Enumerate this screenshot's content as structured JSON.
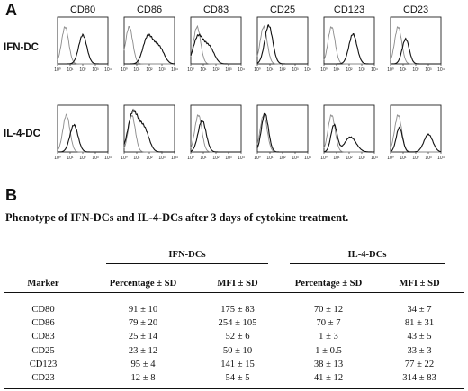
{
  "panel_a": {
    "letter": "A",
    "markers": [
      "CD80",
      "CD86",
      "CD83",
      "CD25",
      "CD123",
      "CD23"
    ],
    "rows": [
      {
        "label": "IFN-DC",
        "plots": [
          {
            "control_peak": 0.6,
            "stain_peak": 2.0,
            "stain_height": 0.64,
            "stain_shape": "single"
          },
          {
            "control_peak": 0.4,
            "stain_peak": 2.3,
            "stain_height": 0.45,
            "stain_shape": "broad"
          },
          {
            "control_peak": 0.5,
            "stain_peak": 1.0,
            "stain_height": 0.45,
            "stain_shape": "broad"
          },
          {
            "control_peak": 0.5,
            "stain_peak": 0.9,
            "stain_height": 0.85,
            "stain_shape": "single"
          },
          {
            "control_peak": 0.6,
            "stain_peak": 2.3,
            "stain_height": 0.66,
            "stain_shape": "single"
          },
          {
            "control_peak": 0.6,
            "stain_peak": 1.2,
            "stain_height": 0.55,
            "stain_shape": "overlap"
          }
        ]
      },
      {
        "label": "IL-4-DC",
        "plots": [
          {
            "control_peak": 0.7,
            "stain_peak": 1.3,
            "stain_height": 0.6,
            "stain_shape": "single"
          },
          {
            "control_peak": 0.6,
            "stain_peak": 1.1,
            "stain_height": 0.64,
            "stain_shape": "broad"
          },
          {
            "control_peak": 0.6,
            "stain_peak": 0.9,
            "stain_height": 0.7,
            "stain_shape": "single"
          },
          {
            "control_peak": 0.5,
            "stain_peak": 0.6,
            "stain_height": 0.85,
            "stain_shape": "overlap"
          },
          {
            "control_peak": 0.6,
            "stain_peak": 1.2,
            "stain_height": 0.6,
            "stain_shape": "bimodal"
          },
          {
            "control_peak": 0.6,
            "stain_peak": 0.9,
            "stain_height": 0.6,
            "stain_shape": "bimodal-high"
          }
        ]
      }
    ],
    "x_ticks": [
      "10⁰",
      "10¹",
      "10²",
      "10³",
      "10⁴"
    ]
  },
  "panel_b": {
    "letter": "B",
    "caption": "Phenotype of IFN-DCs and IL-4-DCs after 3 days of cytokine treatment.",
    "group_headers": [
      "IFN-DCs",
      "IL-4-DCs"
    ],
    "column_headers": [
      "Marker",
      "Percentage ± SD",
      "MFI ± SD",
      "Percentage ± SD",
      "MFI ± SD"
    ],
    "rows": [
      [
        "CD80",
        "91 ± 10",
        "175 ± 83",
        "70 ± 12",
        "34 ± 7"
      ],
      [
        "CD86",
        "79 ± 20",
        "254 ± 105",
        "70 ± 7",
        "81 ± 31"
      ],
      [
        "CD83",
        "25 ± 14",
        "52 ± 6",
        "1 ± 3",
        "43 ± 5"
      ],
      [
        "CD25",
        "23 ± 12",
        "50 ± 10",
        "1 ± 0.5",
        "33 ± 3"
      ],
      [
        "CD123",
        "95 ± 4",
        "141 ± 15",
        "38 ± 13",
        "77 ± 22"
      ],
      [
        "CD23",
        "12 ± 8",
        "54 ± 5",
        "41 ± 12",
        "314 ± 83"
      ]
    ]
  }
}
